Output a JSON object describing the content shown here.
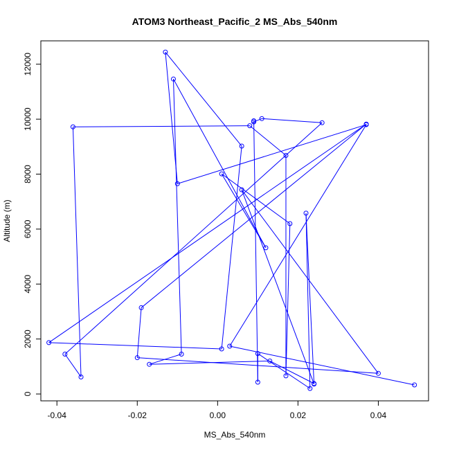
{
  "chart_data": {
    "type": "line",
    "title": "ATOM3 Northeast_Pacific_2 MS_Abs_540nm",
    "xlabel": "MS_Abs_540nm",
    "ylabel": "Altitude (m)",
    "xlim": [
      -0.044,
      0.0525
    ],
    "ylim": [
      -250,
      12850
    ],
    "x_ticks": [
      -0.04,
      -0.02,
      0.0,
      0.02,
      0.04
    ],
    "x_tick_labels": [
      "-0.04",
      "-0.02",
      "0.00",
      "0.02",
      "0.04"
    ],
    "y_ticks": [
      0,
      2000,
      4000,
      6000,
      8000,
      10000,
      12000
    ],
    "y_tick_labels": [
      "0",
      "2000",
      "4000",
      "6000",
      "8000",
      "10000",
      "12000"
    ],
    "grid": false,
    "series_color": "#0000ff",
    "marker": "open-circle",
    "points": [
      {
        "x": 0.024,
        "y": 380
      },
      {
        "x": 0.013,
        "y": 1200
      },
      {
        "x": -0.017,
        "y": 1080
      },
      {
        "x": -0.009,
        "y": 1450
      },
      {
        "x": -0.011,
        "y": 11460
      },
      {
        "x": 0.012,
        "y": 5320
      },
      {
        "x": 0.001,
        "y": 8010
      },
      {
        "x": 0.018,
        "y": 6200
      },
      {
        "x": 0.017,
        "y": 660
      },
      {
        "x": 0.017,
        "y": 8680
      },
      {
        "x": 0.008,
        "y": 9760
      },
      {
        "x": -0.036,
        "y": 9720
      },
      {
        "x": -0.034,
        "y": 620
      },
      {
        "x": -0.038,
        "y": 1450
      },
      {
        "x": 0.026,
        "y": 9870
      },
      {
        "x": 0.011,
        "y": 10020
      },
      {
        "x": 0.009,
        "y": 9900
      },
      {
        "x": 0.009,
        "y": 9940
      },
      {
        "x": 0.01,
        "y": 430
      },
      {
        "x": 0.01,
        "y": 1470
      },
      {
        "x": 0.023,
        "y": 200
      },
      {
        "x": 0.022,
        "y": 6580
      },
      {
        "x": 0.024,
        "y": 360
      },
      {
        "x": 0.006,
        "y": 7430
      },
      {
        "x": 0.04,
        "y": 750
      },
      {
        "x": -0.02,
        "y": 1320
      },
      {
        "x": -0.019,
        "y": 3140
      },
      {
        "x": 0.037,
        "y": 9820
      },
      {
        "x": -0.042,
        "y": 1870
      },
      {
        "x": 0.001,
        "y": 1640
      },
      {
        "x": 0.006,
        "y": 9020
      },
      {
        "x": -0.013,
        "y": 12440
      },
      {
        "x": -0.01,
        "y": 7650
      },
      {
        "x": 0.037,
        "y": 9800
      },
      {
        "x": 0.003,
        "y": 1740
      },
      {
        "x": 0.049,
        "y": 330
      }
    ]
  }
}
